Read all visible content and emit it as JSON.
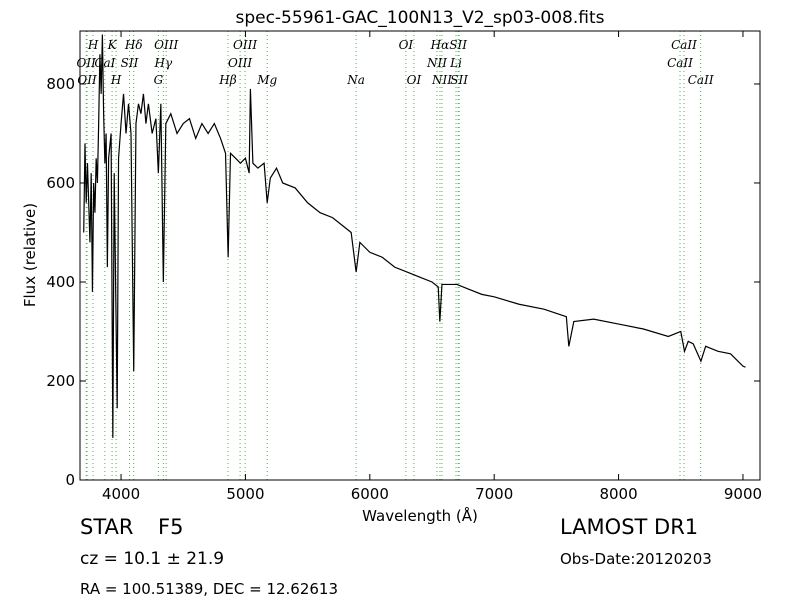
{
  "chart_data": {
    "type": "line",
    "title": "spec-55961-GAC_100N13_V2_sp03-008.fits",
    "x_label": "Wavelength (Å)",
    "y_label": "Flux (relative)",
    "xlim": [
      3670,
      9137
    ],
    "ylim": [
      0,
      907
    ],
    "xticks": [
      4000,
      5000,
      6000,
      7000,
      8000,
      9000
    ],
    "yticks": [
      0,
      200,
      400,
      600,
      800
    ],
    "color": "#000000",
    "line_color": "#5aaa5a",
    "x": [
      3700,
      3710,
      3720,
      3730,
      3750,
      3760,
      3770,
      3780,
      3790,
      3800,
      3810,
      3820,
      3830,
      3840,
      3850,
      3860,
      3870,
      3880,
      3890,
      3900,
      3920,
      3934,
      3945,
      3969,
      3980,
      4000,
      4020,
      4040,
      4060,
      4080,
      4102,
      4120,
      4140,
      4160,
      4180,
      4200,
      4220,
      4250,
      4280,
      4300,
      4320,
      4340,
      4360,
      4400,
      4450,
      4500,
      4550,
      4600,
      4650,
      4700,
      4750,
      4800,
      4840,
      4861,
      4880,
      4920,
      4960,
      5000,
      5030,
      5040,
      5060,
      5100,
      5150,
      5175,
      5200,
      5250,
      5300,
      5400,
      5500,
      5600,
      5700,
      5800,
      5850,
      5890,
      5920,
      6000,
      6100,
      6200,
      6300,
      6400,
      6500,
      6550,
      6563,
      6580,
      6700,
      6800,
      6900,
      7000,
      7200,
      7400,
      7580,
      7600,
      7640,
      7800,
      8000,
      8200,
      8400,
      8500,
      8530,
      8560,
      8600,
      8662,
      8700,
      8800,
      8900,
      9000,
      9020
    ],
    "values": [
      500,
      680,
      560,
      640,
      480,
      620,
      380,
      600,
      540,
      650,
      600,
      720,
      860,
      780,
      900,
      740,
      640,
      700,
      430,
      650,
      700,
      85,
      620,
      145,
      650,
      720,
      780,
      700,
      760,
      700,
      220,
      720,
      760,
      740,
      780,
      720,
      760,
      700,
      730,
      620,
      760,
      400,
      720,
      740,
      700,
      720,
      730,
      690,
      720,
      700,
      720,
      690,
      660,
      450,
      660,
      650,
      640,
      650,
      620,
      790,
      640,
      630,
      640,
      560,
      610,
      630,
      600,
      590,
      560,
      540,
      530,
      510,
      500,
      420,
      480,
      460,
      450,
      430,
      420,
      410,
      400,
      390,
      320,
      395,
      395,
      385,
      375,
      370,
      355,
      345,
      330,
      270,
      320,
      325,
      315,
      305,
      290,
      300,
      260,
      280,
      275,
      240,
      270,
      260,
      255,
      230,
      228
    ],
    "line_labels": [
      [
        {
          "label": "H",
          "x": 3775
        },
        {
          "label": "K",
          "x": 3928
        },
        {
          "label": "Hδ",
          "x": 4102
        },
        {
          "label": "OIII",
          "x": 4363
        },
        {
          "label": "OIII",
          "x": 4997
        },
        {
          "label": "OI",
          "x": 6290
        },
        {
          "label": "Hα",
          "x": 6564
        },
        {
          "label": "SII",
          "x": 6710
        },
        {
          "label": "CaII",
          "x": 8526
        }
      ],
      [
        {
          "label": "OII",
          "x": 3720
        },
        {
          "label": "CaI",
          "x": 3870
        },
        {
          "label": "SII",
          "x": 4068
        },
        {
          "label": "Hγ",
          "x": 4340
        },
        {
          "label": "OIII",
          "x": 4957
        },
        {
          "label": "NII",
          "x": 6540
        },
        {
          "label": "Li",
          "x": 6693
        },
        {
          "label": "CaII",
          "x": 8494
        }
      ],
      [
        {
          "label": "OII",
          "x": 3727
        },
        {
          "label": "H",
          "x": 3960
        },
        {
          "label": "G",
          "x": 4300
        },
        {
          "label": "Hβ",
          "x": 4860
        },
        {
          "label": "Mg",
          "x": 5175
        },
        {
          "label": "Na",
          "x": 5890
        },
        {
          "label": "OI",
          "x": 6355
        },
        {
          "label": "NII",
          "x": 6580
        },
        {
          "label": "SII",
          "x": 6718
        },
        {
          "label": "CaII",
          "x": 8660
        }
      ]
    ],
    "object_class": "STAR",
    "subclass": "F5",
    "redshift": "cz = 10.1 ± 21.9",
    "coordinates": "RA = 100.51389, DEC = 12.62613",
    "survey": "LAMOST DR1",
    "obs_date": "Obs-Date:20120203"
  }
}
